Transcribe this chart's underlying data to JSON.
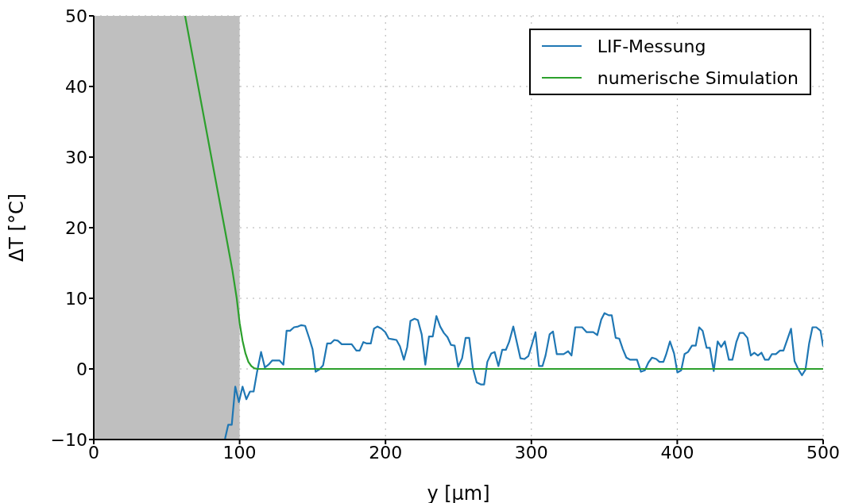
{
  "chart_data": {
    "type": "line",
    "xlabel": "y [µm]",
    "ylabel": "ΔT [°C]",
    "xlim": [
      0,
      500
    ],
    "xticks": [
      0,
      100,
      200,
      300,
      400,
      500
    ],
    "ylim": [
      -10,
      50
    ],
    "yticks": [
      {
        "value": -10,
        "label": "−10"
      },
      0,
      10,
      20,
      30,
      40,
      50
    ],
    "grid": true,
    "legend": "top right",
    "bands": [
      {
        "axis": "x",
        "from": 0,
        "to": 100,
        "color": "#bfbfbf"
      }
    ],
    "series": [
      {
        "name": "LIF-Messung",
        "color": "#1f77b4",
        "x": [
          90,
          92.2,
          94.6,
          97,
          99.5,
          102,
          104.6,
          107.1,
          109.6,
          111.8,
          114.7,
          117.3,
          119.8,
          122.4,
          127.3,
          130,
          132.2,
          134.6,
          137.3,
          140,
          142.3,
          144.9,
          147.8,
          150,
          152.1,
          154.5,
          157.2,
          160,
          162.4,
          164.9,
          167.3,
          170,
          176.8,
          180,
          182.3,
          184.8,
          187.2,
          189.9,
          192.1,
          194.4,
          197.2,
          199.9,
          202.2,
          204.8,
          207.5,
          209.9,
          212.6,
          214.9,
          217.1,
          219.9,
          222.2,
          224.8,
          227.3,
          229.8,
          232.4,
          234.9,
          237.5,
          240,
          242.5,
          244.9,
          247.4,
          249.8,
          252.5,
          254.9,
          257.4,
          259.8,
          262.5,
          265.3,
          267.6,
          269.8,
          272.5,
          274.8,
          277.4,
          280,
          282.5,
          284.7,
          287.6,
          290.1,
          292.5,
          295.2,
          297.9,
          300.3,
          302.8,
          305.2,
          307.6,
          309.7,
          312.5,
          314.8,
          317.4,
          322.1,
          325.2,
          327.5,
          330.1,
          334.8,
          337.9,
          342.4,
          345.2,
          347.9,
          350.1,
          353,
          355.1,
          357.8,
          360.2,
          362.7,
          365.1,
          367.8,
          372.4,
          375.1,
          377.8,
          380.2,
          382.7,
          385.6,
          387.8,
          390.5,
          392.3,
          395,
          397.8,
          400.1,
          402.7,
          405,
          407.4,
          410.1,
          412.7,
          415,
          417.4,
          420.1,
          422.3,
          425,
          427.7,
          430.1,
          432.6,
          435.4,
          437.8,
          440.5,
          442.8,
          445.3,
          448.1,
          450.4,
          452.8,
          455.3,
          457.7,
          460.1,
          462.6,
          464.9,
          467.6,
          470.4,
          472.8,
          475.5,
          478,
          480.4,
          483.1,
          485.5,
          487.9,
          490.4,
          492.7,
          495.3,
          498.2,
          500
        ],
        "values": [
          -9.9,
          -7.9,
          -7.9,
          -2.5,
          -4.7,
          -2.5,
          -4.3,
          -3.2,
          -3.2,
          -0.6,
          2.4,
          0.2,
          0.6,
          1.2,
          1.2,
          0.6,
          5.4,
          5.4,
          5.9,
          6.0,
          6.2,
          6.1,
          4.3,
          2.8,
          -0.4,
          -0.1,
          0.5,
          3.6,
          3.6,
          4.1,
          4.0,
          3.5,
          3.5,
          2.6,
          2.6,
          3.8,
          3.6,
          3.6,
          5.7,
          6.0,
          5.7,
          5.2,
          4.3,
          4.2,
          4.1,
          3.2,
          1.3,
          3.1,
          6.8,
          7.1,
          6.9,
          4.9,
          0.6,
          4.6,
          4.6,
          7.5,
          6.0,
          5.1,
          4.5,
          3.4,
          3.3,
          0.3,
          1.5,
          4.4,
          4.4,
          0.2,
          -1.9,
          -2.2,
          -2.2,
          1.0,
          2.2,
          2.4,
          0.4,
          2.7,
          2.7,
          3.8,
          6.0,
          3.7,
          1.5,
          1.4,
          1.8,
          3.4,
          5.2,
          0.4,
          0.4,
          1.9,
          4.9,
          5.3,
          2.1,
          2.1,
          2.5,
          1.9,
          5.9,
          5.9,
          5.2,
          5.2,
          4.8,
          7.0,
          7.9,
          7.6,
          7.6,
          4.4,
          4.3,
          2.8,
          1.6,
          1.3,
          1.3,
          -0.4,
          -0.2,
          0.9,
          1.6,
          1.4,
          1.0,
          1.0,
          2.0,
          3.9,
          2.2,
          -0.5,
          -0.2,
          2.1,
          2.4,
          3.3,
          3.3,
          5.9,
          5.4,
          3.0,
          3.0,
          -0.3,
          3.9,
          3.1,
          3.9,
          1.3,
          1.3,
          3.8,
          5.1,
          5.1,
          4.4,
          1.9,
          2.3,
          1.9,
          2.3,
          1.3,
          1.3,
          2.1,
          2.1,
          2.6,
          2.6,
          4.2,
          5.7,
          1.1,
          -0.1,
          -0.9,
          -0.1,
          3.6,
          5.9,
          5.9,
          5.4,
          3.2
        ]
      },
      {
        "name": "numerische Simulation",
        "color": "#2ca02c",
        "x": [
          62.6,
          80.6,
          90,
          95,
          98,
          100,
          102,
          104,
          106,
          108,
          110,
          112,
          500
        ],
        "values": [
          50,
          30,
          19.6,
          14,
          10,
          6.5,
          4,
          2.2,
          1,
          0.4,
          0.1,
          0,
          0
        ]
      }
    ]
  }
}
